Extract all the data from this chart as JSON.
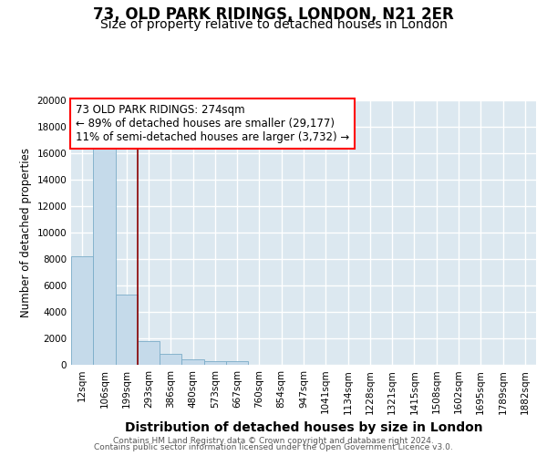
{
  "title": "73, OLD PARK RIDINGS, LONDON, N21 2ER",
  "subtitle": "Size of property relative to detached houses in London",
  "xlabel": "Distribution of detached houses by size in London",
  "ylabel": "Number of detached properties",
  "categories": [
    "12sqm",
    "106sqm",
    "199sqm",
    "293sqm",
    "386sqm",
    "480sqm",
    "573sqm",
    "667sqm",
    "760sqm",
    "854sqm",
    "947sqm",
    "1041sqm",
    "1134sqm",
    "1228sqm",
    "1321sqm",
    "1415sqm",
    "1508sqm",
    "1602sqm",
    "1695sqm",
    "1789sqm",
    "1882sqm"
  ],
  "values": [
    8200,
    16500,
    5300,
    1800,
    800,
    400,
    300,
    300,
    0,
    0,
    0,
    0,
    0,
    0,
    0,
    0,
    0,
    0,
    0,
    0,
    0
  ],
  "bar_color": "#c5daea",
  "bar_edge_color": "#7aacc8",
  "red_line_x": 2.5,
  "annotation_line1": "73 OLD PARK RIDINGS: 274sqm",
  "annotation_line2": "← 89% of detached houses are smaller (29,177)",
  "annotation_line3": "11% of semi-detached houses are larger (3,732) →",
  "ylim": [
    0,
    20000
  ],
  "yticks": [
    0,
    2000,
    4000,
    6000,
    8000,
    10000,
    12000,
    14000,
    16000,
    18000,
    20000
  ],
  "background_color": "#dce8f0",
  "grid_color": "white",
  "footer_line1": "Contains HM Land Registry data © Crown copyright and database right 2024.",
  "footer_line2": "Contains public sector information licensed under the Open Government Licence v3.0.",
  "title_fontsize": 12,
  "subtitle_fontsize": 10,
  "xlabel_fontsize": 10,
  "ylabel_fontsize": 8.5,
  "tick_fontsize": 7.5,
  "annotation_fontsize": 8.5,
  "footer_fontsize": 6.5
}
